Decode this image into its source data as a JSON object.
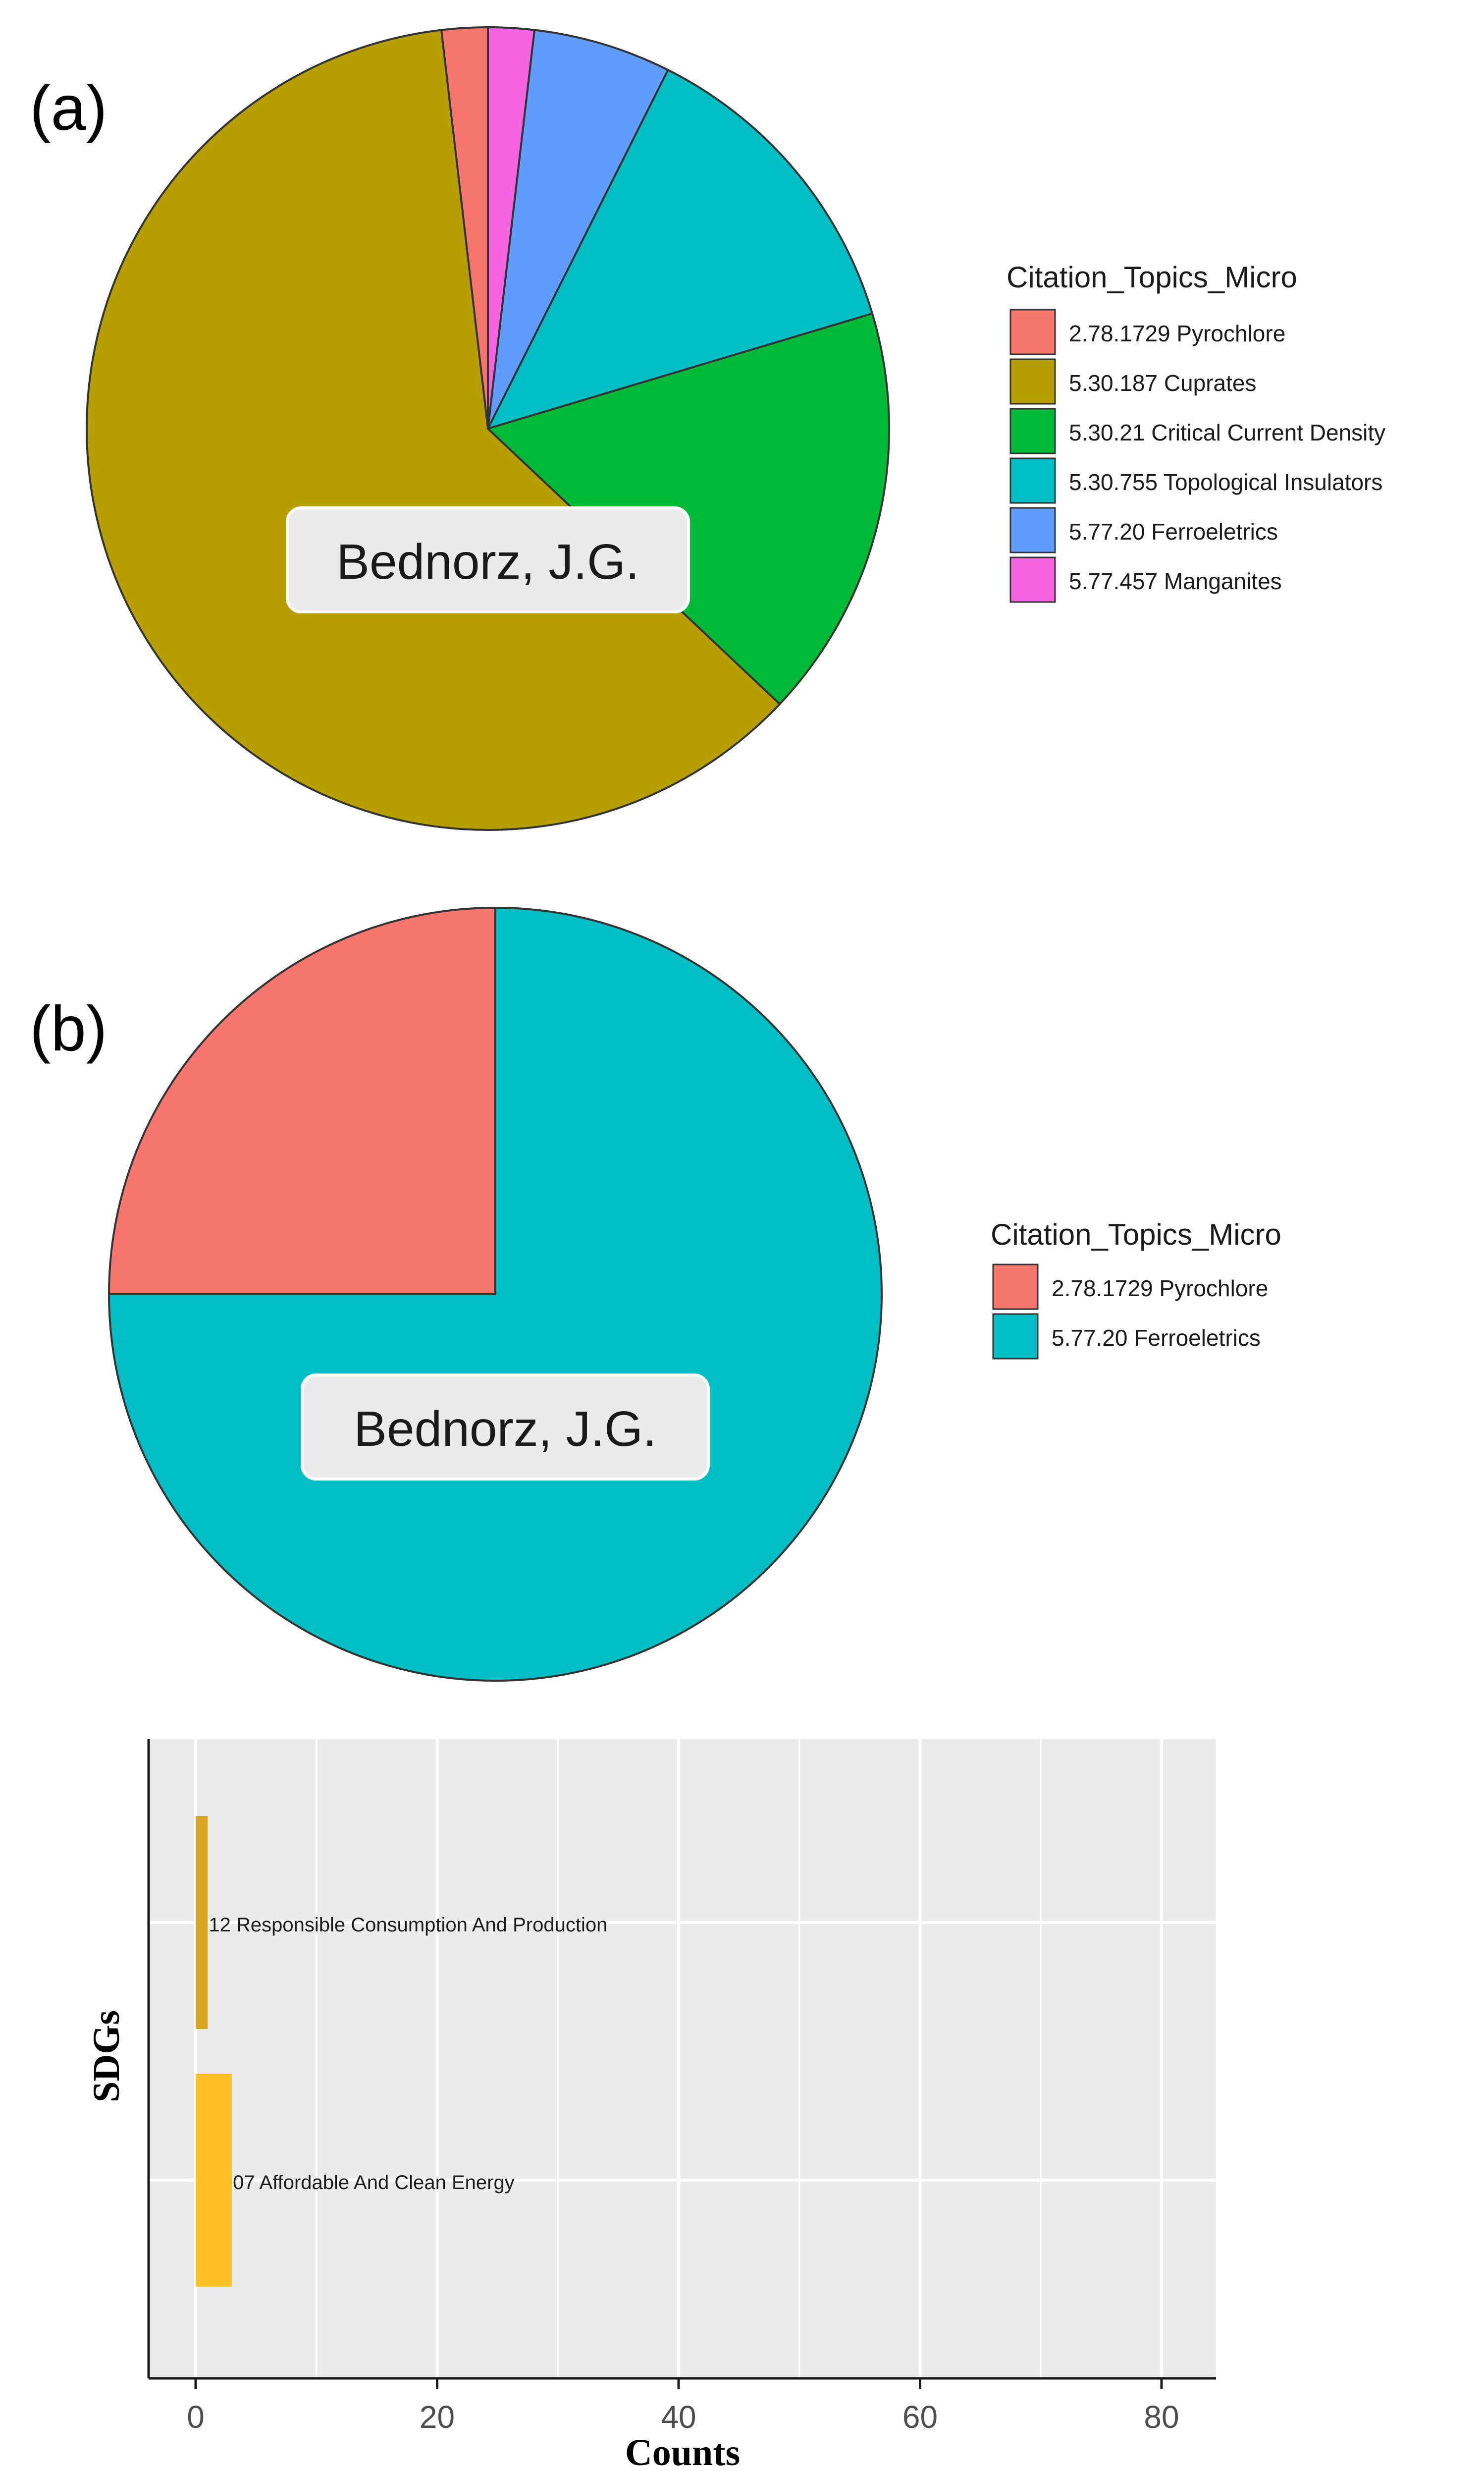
{
  "chart_data": [
    {
      "panel_label": "(a)",
      "type": "pie",
      "center_label": "Bednorz, J.G.",
      "legend_title": "Citation_Topics_Micro",
      "legend_position": "right",
      "slices": [
        {
          "label": "2.78.1729 Pyrochlore",
          "value": 1,
          "color": "#F8766D"
        },
        {
          "label": "5.30.187 Cuprates",
          "value": 33,
          "color": "#B79F00"
        },
        {
          "label": "5.30.21 Critical Current Density",
          "value": 9,
          "color": "#00BA38"
        },
        {
          "label": "5.30.755 Topological Insulators",
          "value": 7,
          "color": "#00BFC4"
        },
        {
          "label": "5.77.20 Ferroeletrics",
          "value": 3,
          "color": "#619CFF"
        },
        {
          "label": "5.77.457 Manganites",
          "value": 1,
          "color": "#F564E3"
        }
      ]
    },
    {
      "panel_label": "(b)",
      "type": "pie",
      "center_label": "Bednorz, J.G.",
      "legend_title": "Citation_Topics_Micro",
      "legend_position": "right",
      "slices": [
        {
          "label": "2.78.1729 Pyrochlore",
          "value": 1,
          "color": "#F8766D"
        },
        {
          "label": "5.77.20 Ferroeletrics",
          "value": 3,
          "color": "#00BFC4"
        }
      ]
    },
    {
      "type": "bar",
      "orientation": "horizontal",
      "categories": [
        "07 Affordable And Clean Energy",
        "12 Responsible Consumption And Production"
      ],
      "values": [
        3,
        1
      ],
      "colors": [
        "#FFC125",
        "#DAA520"
      ],
      "xlabel": "Counts",
      "ylabel": "SDGs",
      "xlim": [
        0,
        84
      ],
      "xticks": [
        0,
        20,
        40,
        60,
        80
      ],
      "grid": true,
      "panel_background": "#EBEBEB"
    }
  ]
}
